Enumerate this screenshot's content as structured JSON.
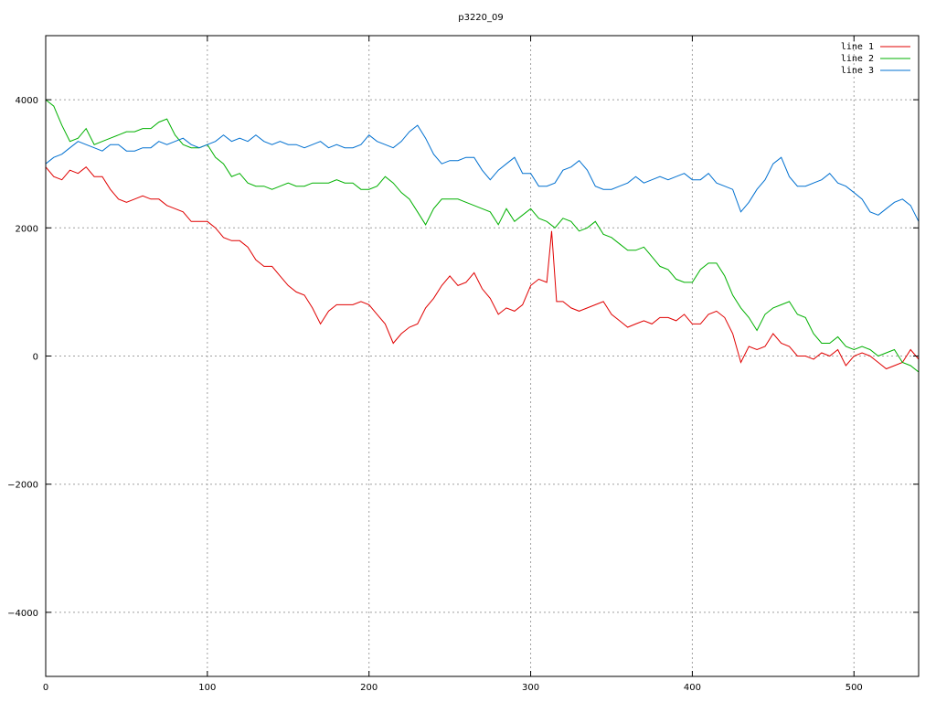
{
  "chart_data": {
    "type": "line",
    "title": "p3220_09",
    "xlabel": "",
    "ylabel": "",
    "xlim": [
      0,
      540
    ],
    "ylim": [
      -5000,
      5000
    ],
    "xticks": [
      0,
      100,
      200,
      300,
      400,
      500
    ],
    "yticks": [
      -4000,
      -2000,
      0,
      2000,
      4000
    ],
    "grid": true,
    "legend_position": "top-right",
    "series": [
      {
        "name": "line 1",
        "color": "#e00000",
        "points": [
          [
            0,
            2950
          ],
          [
            5,
            2800
          ],
          [
            10,
            2750
          ],
          [
            15,
            2900
          ],
          [
            20,
            2850
          ],
          [
            25,
            2950
          ],
          [
            30,
            2800
          ],
          [
            35,
            2800
          ],
          [
            40,
            2600
          ],
          [
            45,
            2450
          ],
          [
            50,
            2400
          ],
          [
            55,
            2450
          ],
          [
            60,
            2500
          ],
          [
            65,
            2450
          ],
          [
            70,
            2450
          ],
          [
            75,
            2350
          ],
          [
            80,
            2300
          ],
          [
            85,
            2250
          ],
          [
            90,
            2100
          ],
          [
            95,
            2100
          ],
          [
            100,
            2100
          ],
          [
            105,
            2000
          ],
          [
            110,
            1850
          ],
          [
            115,
            1800
          ],
          [
            120,
            1800
          ],
          [
            125,
            1700
          ],
          [
            130,
            1500
          ],
          [
            135,
            1400
          ],
          [
            140,
            1400
          ],
          [
            145,
            1250
          ],
          [
            150,
            1100
          ],
          [
            155,
            1000
          ],
          [
            160,
            950
          ],
          [
            165,
            750
          ],
          [
            170,
            500
          ],
          [
            175,
            700
          ],
          [
            180,
            800
          ],
          [
            185,
            800
          ],
          [
            190,
            800
          ],
          [
            195,
            850
          ],
          [
            200,
            800
          ],
          [
            205,
            650
          ],
          [
            210,
            500
          ],
          [
            215,
            200
          ],
          [
            220,
            350
          ],
          [
            225,
            450
          ],
          [
            230,
            500
          ],
          [
            235,
            750
          ],
          [
            240,
            900
          ],
          [
            245,
            1100
          ],
          [
            250,
            1250
          ],
          [
            255,
            1100
          ],
          [
            260,
            1150
          ],
          [
            265,
            1300
          ],
          [
            270,
            1050
          ],
          [
            275,
            900
          ],
          [
            280,
            650
          ],
          [
            285,
            750
          ],
          [
            290,
            700
          ],
          [
            295,
            800
          ],
          [
            300,
            1100
          ],
          [
            305,
            1200
          ],
          [
            310,
            1150
          ],
          [
            313,
            1950
          ],
          [
            316,
            850
          ],
          [
            320,
            850
          ],
          [
            325,
            750
          ],
          [
            330,
            700
          ],
          [
            335,
            750
          ],
          [
            340,
            800
          ],
          [
            345,
            850
          ],
          [
            350,
            650
          ],
          [
            355,
            550
          ],
          [
            360,
            450
          ],
          [
            365,
            500
          ],
          [
            370,
            550
          ],
          [
            375,
            500
          ],
          [
            380,
            600
          ],
          [
            385,
            600
          ],
          [
            390,
            550
          ],
          [
            395,
            650
          ],
          [
            400,
            500
          ],
          [
            405,
            500
          ],
          [
            410,
            650
          ],
          [
            415,
            700
          ],
          [
            420,
            600
          ],
          [
            425,
            350
          ],
          [
            430,
            -100
          ],
          [
            435,
            150
          ],
          [
            440,
            100
          ],
          [
            445,
            150
          ],
          [
            450,
            350
          ],
          [
            455,
            200
          ],
          [
            460,
            150
          ],
          [
            465,
            0
          ],
          [
            470,
            0
          ],
          [
            475,
            -50
          ],
          [
            480,
            50
          ],
          [
            485,
            0
          ],
          [
            490,
            100
          ],
          [
            495,
            -150
          ],
          [
            500,
            0
          ],
          [
            505,
            50
          ],
          [
            510,
            0
          ],
          [
            515,
            -100
          ],
          [
            520,
            -200
          ],
          [
            525,
            -150
          ],
          [
            530,
            -100
          ],
          [
            535,
            100
          ],
          [
            540,
            -50
          ]
        ]
      },
      {
        "name": "line 2",
        "color": "#00b000",
        "points": [
          [
            0,
            4000
          ],
          [
            5,
            3900
          ],
          [
            10,
            3600
          ],
          [
            15,
            3350
          ],
          [
            20,
            3400
          ],
          [
            25,
            3550
          ],
          [
            30,
            3300
          ],
          [
            35,
            3350
          ],
          [
            40,
            3400
          ],
          [
            45,
            3450
          ],
          [
            50,
            3500
          ],
          [
            55,
            3500
          ],
          [
            60,
            3550
          ],
          [
            65,
            3550
          ],
          [
            70,
            3650
          ],
          [
            75,
            3700
          ],
          [
            80,
            3450
          ],
          [
            85,
            3300
          ],
          [
            90,
            3250
          ],
          [
            95,
            3250
          ],
          [
            100,
            3300
          ],
          [
            105,
            3100
          ],
          [
            110,
            3000
          ],
          [
            115,
            2800
          ],
          [
            120,
            2850
          ],
          [
            125,
            2700
          ],
          [
            130,
            2650
          ],
          [
            135,
            2650
          ],
          [
            140,
            2600
          ],
          [
            145,
            2650
          ],
          [
            150,
            2700
          ],
          [
            155,
            2650
          ],
          [
            160,
            2650
          ],
          [
            165,
            2700
          ],
          [
            170,
            2700
          ],
          [
            175,
            2700
          ],
          [
            180,
            2750
          ],
          [
            185,
            2700
          ],
          [
            190,
            2700
          ],
          [
            195,
            2600
          ],
          [
            200,
            2600
          ],
          [
            205,
            2650
          ],
          [
            210,
            2800
          ],
          [
            215,
            2700
          ],
          [
            220,
            2550
          ],
          [
            225,
            2450
          ],
          [
            230,
            2250
          ],
          [
            235,
            2050
          ],
          [
            240,
            2300
          ],
          [
            245,
            2450
          ],
          [
            250,
            2450
          ],
          [
            255,
            2450
          ],
          [
            260,
            2400
          ],
          [
            265,
            2350
          ],
          [
            270,
            2300
          ],
          [
            275,
            2250
          ],
          [
            280,
            2050
          ],
          [
            285,
            2300
          ],
          [
            290,
            2100
          ],
          [
            295,
            2200
          ],
          [
            300,
            2300
          ],
          [
            305,
            2150
          ],
          [
            310,
            2100
          ],
          [
            315,
            2000
          ],
          [
            320,
            2150
          ],
          [
            325,
            2100
          ],
          [
            330,
            1950
          ],
          [
            335,
            2000
          ],
          [
            340,
            2100
          ],
          [
            345,
            1900
          ],
          [
            350,
            1850
          ],
          [
            355,
            1750
          ],
          [
            360,
            1650
          ],
          [
            365,
            1650
          ],
          [
            370,
            1700
          ],
          [
            375,
            1550
          ],
          [
            380,
            1400
          ],
          [
            385,
            1350
          ],
          [
            390,
            1200
          ],
          [
            395,
            1150
          ],
          [
            400,
            1150
          ],
          [
            405,
            1350
          ],
          [
            410,
            1450
          ],
          [
            415,
            1450
          ],
          [
            420,
            1250
          ],
          [
            425,
            950
          ],
          [
            430,
            750
          ],
          [
            435,
            600
          ],
          [
            440,
            400
          ],
          [
            445,
            650
          ],
          [
            450,
            750
          ],
          [
            455,
            800
          ],
          [
            460,
            850
          ],
          [
            465,
            650
          ],
          [
            470,
            600
          ],
          [
            475,
            350
          ],
          [
            480,
            200
          ],
          [
            485,
            200
          ],
          [
            490,
            300
          ],
          [
            495,
            150
          ],
          [
            500,
            100
          ],
          [
            505,
            150
          ],
          [
            510,
            100
          ],
          [
            515,
            0
          ],
          [
            520,
            50
          ],
          [
            525,
            100
          ],
          [
            530,
            -100
          ],
          [
            535,
            -150
          ],
          [
            540,
            -250
          ]
        ]
      },
      {
        "name": "line 3",
        "color": "#0070d0",
        "points": [
          [
            0,
            3000
          ],
          [
            5,
            3100
          ],
          [
            10,
            3150
          ],
          [
            15,
            3250
          ],
          [
            20,
            3350
          ],
          [
            25,
            3300
          ],
          [
            30,
            3250
          ],
          [
            35,
            3200
          ],
          [
            40,
            3300
          ],
          [
            45,
            3300
          ],
          [
            50,
            3200
          ],
          [
            55,
            3200
          ],
          [
            60,
            3250
          ],
          [
            65,
            3250
          ],
          [
            70,
            3350
          ],
          [
            75,
            3300
          ],
          [
            80,
            3350
          ],
          [
            85,
            3400
          ],
          [
            90,
            3300
          ],
          [
            95,
            3250
          ],
          [
            100,
            3300
          ],
          [
            105,
            3350
          ],
          [
            110,
            3450
          ],
          [
            115,
            3350
          ],
          [
            120,
            3400
          ],
          [
            125,
            3350
          ],
          [
            130,
            3450
          ],
          [
            135,
            3350
          ],
          [
            140,
            3300
          ],
          [
            145,
            3350
          ],
          [
            150,
            3300
          ],
          [
            155,
            3300
          ],
          [
            160,
            3250
          ],
          [
            165,
            3300
          ],
          [
            170,
            3350
          ],
          [
            175,
            3250
          ],
          [
            180,
            3300
          ],
          [
            185,
            3250
          ],
          [
            190,
            3250
          ],
          [
            195,
            3300
          ],
          [
            200,
            3450
          ],
          [
            205,
            3350
          ],
          [
            210,
            3300
          ],
          [
            215,
            3250
          ],
          [
            220,
            3350
          ],
          [
            225,
            3500
          ],
          [
            230,
            3600
          ],
          [
            235,
            3400
          ],
          [
            240,
            3150
          ],
          [
            245,
            3000
          ],
          [
            250,
            3050
          ],
          [
            255,
            3050
          ],
          [
            260,
            3100
          ],
          [
            265,
            3100
          ],
          [
            270,
            2900
          ],
          [
            275,
            2750
          ],
          [
            280,
            2900
          ],
          [
            285,
            3000
          ],
          [
            290,
            3100
          ],
          [
            295,
            2850
          ],
          [
            300,
            2850
          ],
          [
            305,
            2650
          ],
          [
            310,
            2650
          ],
          [
            315,
            2700
          ],
          [
            320,
            2900
          ],
          [
            325,
            2950
          ],
          [
            330,
            3050
          ],
          [
            335,
            2900
          ],
          [
            340,
            2650
          ],
          [
            345,
            2600
          ],
          [
            350,
            2600
          ],
          [
            355,
            2650
          ],
          [
            360,
            2700
          ],
          [
            365,
            2800
          ],
          [
            370,
            2700
          ],
          [
            375,
            2750
          ],
          [
            380,
            2800
          ],
          [
            385,
            2750
          ],
          [
            390,
            2800
          ],
          [
            395,
            2850
          ],
          [
            400,
            2750
          ],
          [
            405,
            2750
          ],
          [
            410,
            2850
          ],
          [
            415,
            2700
          ],
          [
            420,
            2650
          ],
          [
            425,
            2600
          ],
          [
            430,
            2250
          ],
          [
            435,
            2400
          ],
          [
            440,
            2600
          ],
          [
            445,
            2750
          ],
          [
            450,
            3000
          ],
          [
            455,
            3100
          ],
          [
            460,
            2800
          ],
          [
            465,
            2650
          ],
          [
            470,
            2650
          ],
          [
            475,
            2700
          ],
          [
            480,
            2750
          ],
          [
            485,
            2850
          ],
          [
            490,
            2700
          ],
          [
            495,
            2650
          ],
          [
            500,
            2550
          ],
          [
            505,
            2450
          ],
          [
            510,
            2250
          ],
          [
            515,
            2200
          ],
          [
            520,
            2300
          ],
          [
            525,
            2400
          ],
          [
            530,
            2450
          ],
          [
            535,
            2350
          ],
          [
            540,
            2100
          ]
        ]
      }
    ]
  }
}
